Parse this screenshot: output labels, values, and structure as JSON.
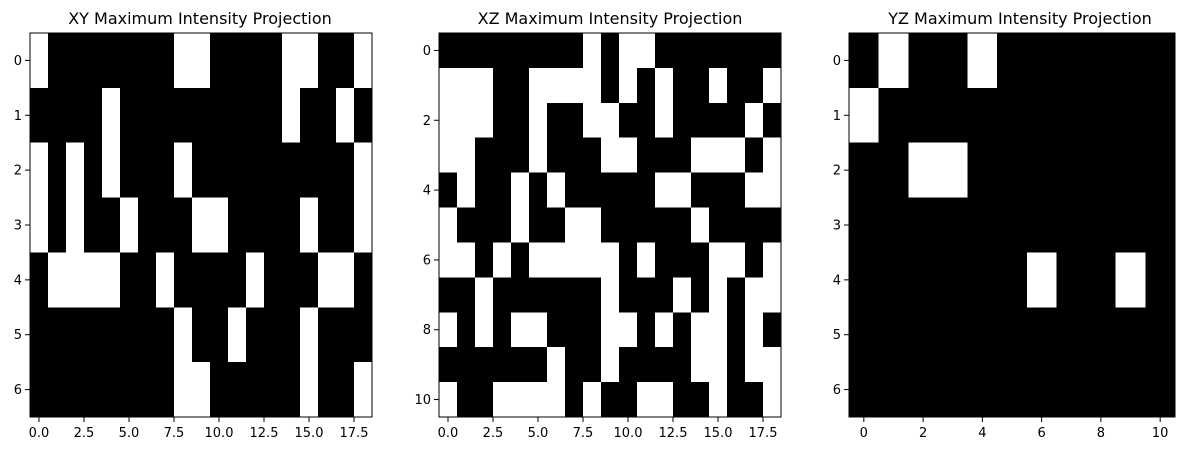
{
  "chart_data": [
    {
      "type": "heatmap",
      "title": "XY Maximum Intensity Projection",
      "colormap": [
        "#000000",
        "#ffffff"
      ],
      "xlim": [
        -0.5,
        18.5
      ],
      "ylim": [
        6.5,
        -0.5
      ],
      "xticks": [
        0,
        2.5,
        5,
        7.5,
        10,
        12.5,
        15,
        17.5
      ],
      "xtick_labels": [
        "0.0",
        "2.5",
        "5.0",
        "7.5",
        "10.0",
        "12.5",
        "15.0",
        "17.5"
      ],
      "yticks": [
        0,
        1,
        2,
        3,
        4,
        5,
        6
      ],
      "ytick_labels": [
        "0",
        "1",
        "2",
        "3",
        "4",
        "5",
        "6"
      ],
      "values": [
        [
          1,
          0,
          0,
          0,
          0,
          0,
          0,
          0,
          1,
          1,
          0,
          0,
          0,
          0,
          1,
          1,
          0,
          0,
          1
        ],
        [
          0,
          0,
          0,
          0,
          1,
          0,
          0,
          0,
          0,
          0,
          0,
          0,
          0,
          0,
          1,
          0,
          0,
          1,
          0
        ],
        [
          1,
          0,
          1,
          0,
          1,
          0,
          0,
          0,
          1,
          0,
          0,
          0,
          0,
          0,
          0,
          0,
          0,
          0,
          1
        ],
        [
          1,
          0,
          1,
          0,
          0,
          1,
          0,
          0,
          0,
          1,
          1,
          0,
          0,
          0,
          0,
          1,
          0,
          0,
          1
        ],
        [
          0,
          1,
          1,
          1,
          1,
          0,
          0,
          1,
          0,
          0,
          0,
          0,
          1,
          0,
          0,
          0,
          1,
          1,
          0
        ],
        [
          0,
          0,
          0,
          0,
          0,
          0,
          0,
          0,
          1,
          0,
          0,
          1,
          0,
          0,
          0,
          1,
          0,
          0,
          0
        ],
        [
          0,
          0,
          0,
          0,
          0,
          0,
          0,
          0,
          1,
          1,
          0,
          0,
          0,
          0,
          0,
          1,
          0,
          0,
          1
        ]
      ]
    },
    {
      "type": "heatmap",
      "title": "XZ Maximum Intensity Projection",
      "colormap": [
        "#000000",
        "#ffffff"
      ],
      "xlim": [
        -0.5,
        18.5
      ],
      "ylim": [
        10.5,
        -0.5
      ],
      "xticks": [
        0,
        2.5,
        5,
        7.5,
        10,
        12.5,
        15,
        17.5
      ],
      "xtick_labels": [
        "0.0",
        "2.5",
        "5.0",
        "7.5",
        "10.0",
        "12.5",
        "15.0",
        "17.5"
      ],
      "yticks": [
        0,
        2,
        4,
        6,
        8,
        10
      ],
      "ytick_labels": [
        "0",
        "2",
        "4",
        "6",
        "8",
        "10"
      ],
      "values": [
        [
          0,
          0,
          0,
          0,
          0,
          0,
          0,
          0,
          1,
          0,
          1,
          1,
          0,
          0,
          0,
          0,
          0,
          0,
          0
        ],
        [
          1,
          1,
          1,
          0,
          0,
          1,
          1,
          1,
          1,
          0,
          1,
          0,
          1,
          0,
          0,
          1,
          0,
          0,
          1
        ],
        [
          1,
          1,
          1,
          0,
          0,
          1,
          0,
          0,
          1,
          1,
          0,
          0,
          1,
          0,
          0,
          0,
          0,
          1,
          0
        ],
        [
          1,
          1,
          0,
          0,
          0,
          1,
          0,
          0,
          0,
          1,
          1,
          0,
          0,
          0,
          1,
          1,
          1,
          0,
          1
        ],
        [
          0,
          1,
          0,
          0,
          1,
          0,
          1,
          0,
          0,
          0,
          0,
          0,
          1,
          1,
          0,
          0,
          0,
          1,
          1
        ],
        [
          1,
          0,
          0,
          0,
          1,
          0,
          0,
          1,
          1,
          0,
          0,
          0,
          0,
          0,
          1,
          0,
          0,
          0,
          0
        ],
        [
          1,
          1,
          0,
          1,
          0,
          1,
          1,
          1,
          1,
          1,
          0,
          1,
          0,
          0,
          0,
          1,
          1,
          0,
          1
        ],
        [
          0,
          0,
          1,
          0,
          0,
          0,
          0,
          0,
          0,
          1,
          0,
          0,
          0,
          1,
          0,
          1,
          0,
          1,
          1
        ],
        [
          1,
          0,
          1,
          0,
          1,
          1,
          0,
          0,
          0,
          1,
          1,
          0,
          1,
          0,
          1,
          1,
          0,
          1,
          0
        ],
        [
          0,
          0,
          0,
          0,
          0,
          0,
          1,
          0,
          0,
          1,
          0,
          0,
          0,
          0,
          1,
          1,
          0,
          1,
          1
        ],
        [
          1,
          0,
          0,
          1,
          1,
          1,
          1,
          0,
          1,
          0,
          0,
          1,
          1,
          0,
          0,
          1,
          0,
          0,
          1
        ]
      ]
    },
    {
      "type": "heatmap",
      "title": "YZ Maximum Intensity Projection",
      "colormap": [
        "#000000",
        "#ffffff"
      ],
      "xlim": [
        -0.5,
        10.5
      ],
      "ylim": [
        6.5,
        -0.5
      ],
      "xticks": [
        0,
        2,
        4,
        6,
        8,
        10
      ],
      "xtick_labels": [
        "0",
        "2",
        "4",
        "6",
        "8",
        "10"
      ],
      "yticks": [
        0,
        1,
        2,
        3,
        4,
        5,
        6
      ],
      "ytick_labels": [
        "0",
        "1",
        "2",
        "3",
        "4",
        "5",
        "6"
      ],
      "values": [
        [
          0,
          1,
          0,
          0,
          1,
          0,
          0,
          0,
          0,
          0,
          0
        ],
        [
          1,
          0,
          0,
          0,
          0,
          0,
          0,
          0,
          0,
          0,
          0
        ],
        [
          0,
          0,
          1,
          1,
          0,
          0,
          0,
          0,
          0,
          0,
          0
        ],
        [
          0,
          0,
          0,
          0,
          0,
          0,
          0,
          0,
          0,
          0,
          0
        ],
        [
          0,
          0,
          0,
          0,
          0,
          0,
          1,
          0,
          0,
          1,
          0
        ],
        [
          0,
          0,
          0,
          0,
          0,
          0,
          0,
          0,
          0,
          0,
          0
        ],
        [
          0,
          0,
          0,
          0,
          0,
          0,
          0,
          0,
          0,
          0,
          0
        ]
      ]
    }
  ]
}
